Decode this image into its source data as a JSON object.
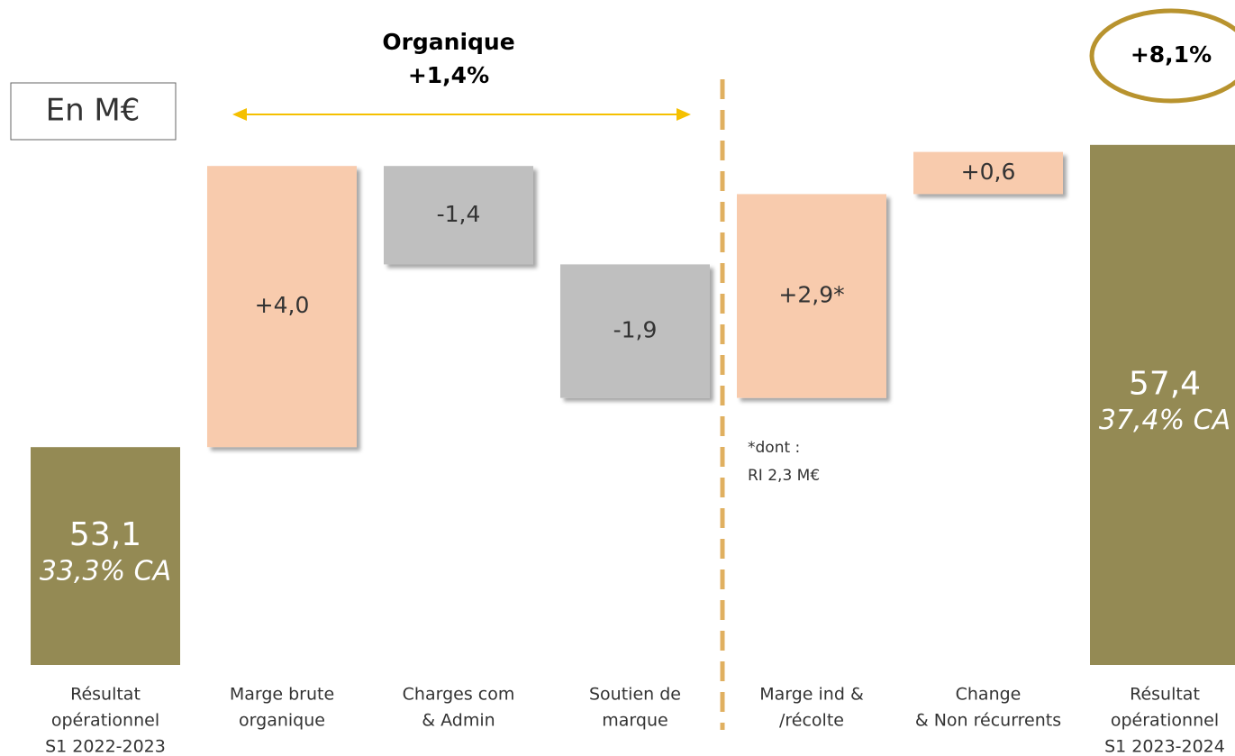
{
  "chart_data": {
    "type": "waterfall",
    "categories": [
      [
        "Résultat",
        "opérationnel",
        "S1 2022-2023"
      ],
      [
        "Marge brute",
        "organique"
      ],
      [
        "Charges com",
        "& Admin"
      ],
      [
        "Soutien de",
        "marque"
      ],
      [
        "Marge ind &",
        "/récolte"
      ],
      [
        "Change",
        "& Non récurrents"
      ],
      [
        "Résultat",
        "opérationnel",
        "S1 2023-2024"
      ]
    ],
    "measure": [
      "absolute",
      "relative",
      "relative",
      "relative",
      "relative",
      "relative",
      "absolute"
    ],
    "values": [
      53.1,
      4.0,
      -1.4,
      -1.9,
      2.9,
      0.6,
      57.4
    ],
    "value_labels": [
      "53,1",
      "+4,0",
      "-1,4",
      "-1,9",
      "+2,9*",
      "+0,6",
      "57,4"
    ],
    "sublabels": [
      "33,3% CA",
      null,
      null,
      null,
      null,
      null,
      "37,4% CA"
    ],
    "colors": {
      "total": "#948a54",
      "increase": "#f8cbad",
      "decrease": "#bfbfbf"
    },
    "ylim": [
      50,
      58
    ],
    "unit_box": "En M€",
    "annotations": {
      "organic_title": "Organique",
      "organic_value": "+1,4%",
      "total_change": "+8,1%",
      "footnote": [
        "*dont :",
        "RI 2,3 M€"
      ]
    }
  }
}
